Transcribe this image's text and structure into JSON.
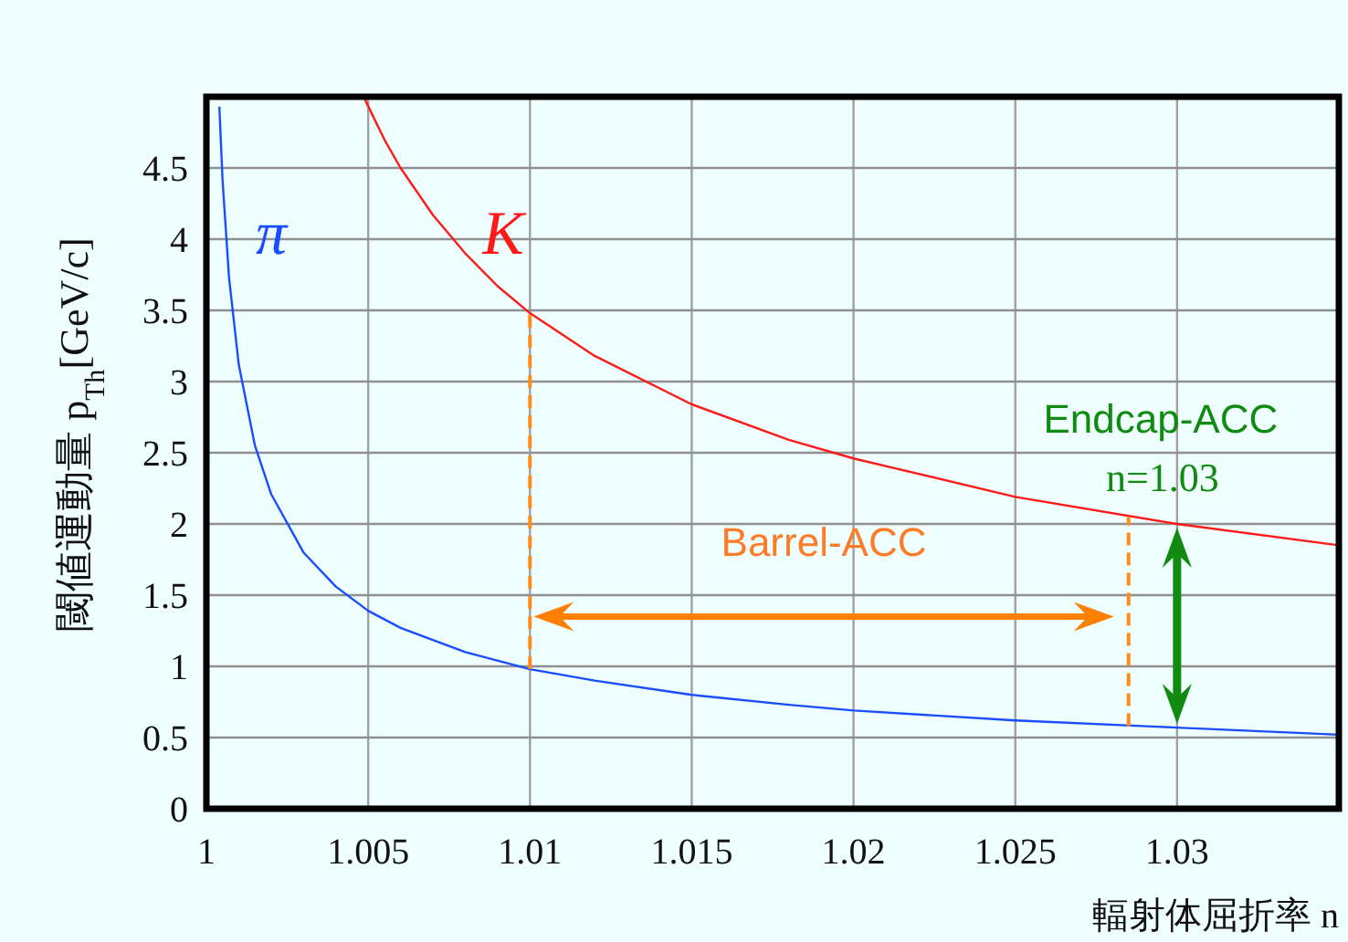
{
  "chart_data": {
    "type": "line",
    "xlabel": "輻射体屈折率 n",
    "ylabel": "閾値運動量 p$_{Th}$[GeV/c]",
    "xlim": [
      1,
      1.035
    ],
    "ylim": [
      0,
      5
    ],
    "xticks": [
      1,
      1.005,
      1.01,
      1.015,
      1.02,
      1.025,
      1.03
    ],
    "yticks": [
      0,
      0.5,
      1,
      1.5,
      2,
      2.5,
      3,
      3.5,
      4,
      4.5
    ],
    "grid": true,
    "series": [
      {
        "name": "π",
        "color": "#1a4dff",
        "x": [
          1.0004,
          1.0005,
          1.0007,
          1.001,
          1.0015,
          1.002,
          1.003,
          1.004,
          1.005,
          1.006,
          1.008,
          1.01,
          1.012,
          1.015,
          1.018,
          1.02,
          1.025,
          1.03,
          1.035
        ],
        "values": [
          4.93,
          4.41,
          3.73,
          3.12,
          2.55,
          2.21,
          1.8,
          1.56,
          1.39,
          1.27,
          1.1,
          0.98,
          0.9,
          0.8,
          0.73,
          0.69,
          0.62,
          0.57,
          0.52
        ]
      },
      {
        "name": "K",
        "color": "#ff1a1a",
        "x": [
          1.0049,
          1.0055,
          1.006,
          1.007,
          1.008,
          1.009,
          1.01,
          1.012,
          1.015,
          1.018,
          1.02,
          1.025,
          1.03,
          1.035
        ],
        "values": [
          4.98,
          4.7,
          4.5,
          4.17,
          3.9,
          3.67,
          3.48,
          3.18,
          2.84,
          2.59,
          2.46,
          2.19,
          2.0,
          1.85
        ]
      },
      {
        "color": "#ff8c1a",
        "line_style": "dashed",
        "x": [
          1.01,
          1.01
        ],
        "values": [
          0.98,
          3.48
        ]
      },
      {
        "color": "#ff8c1a",
        "line_style": "dashed",
        "x": [
          1.0285,
          1.0285
        ],
        "values": [
          0.58,
          2.05
        ]
      }
    ],
    "annotations": [
      "Barrel-ACC",
      "Endcap-ACC",
      "n=1.03"
    ]
  }
}
